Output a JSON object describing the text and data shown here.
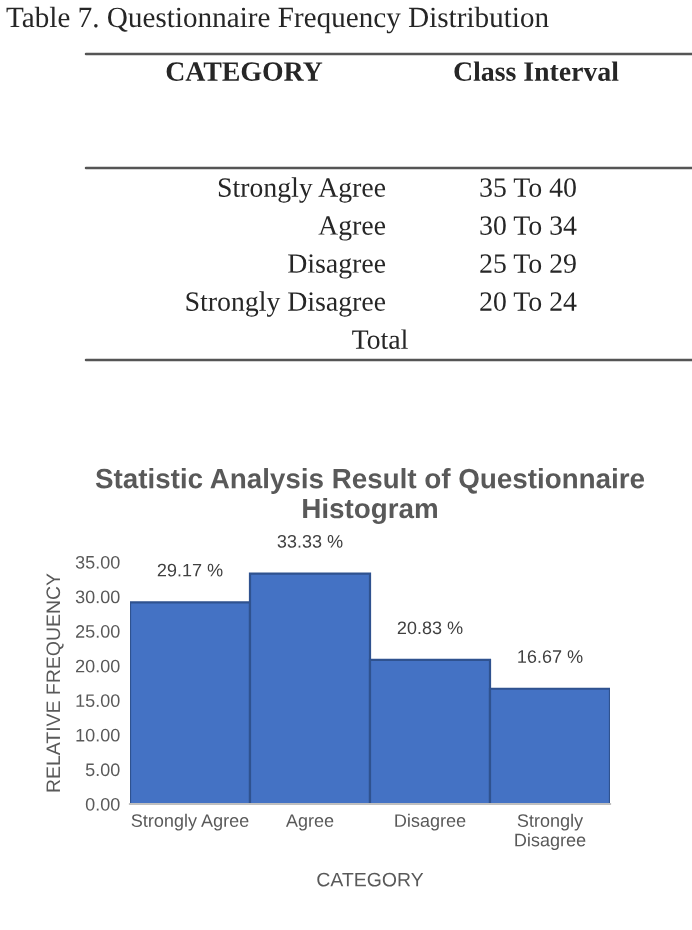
{
  "chart_data": [
    {
      "type": "other",
      "title": "Table 7. Questionnaire Frequency Distribution",
      "annotations": [
        "CATEGORY",
        "Class Interval",
        "Strongly Agree",
        "35 To 40",
        "Agree",
        "30 To 34",
        "Disagree",
        "25 To 29",
        "Strongly Disagree",
        "20 To 24",
        "Total"
      ]
    },
    {
      "type": "bar",
      "title": "Statistic Analysis Result of Questionnaire Histogram",
      "xlabel": "CATEGORY",
      "ylabel": "RELATIVE FREQUENCY",
      "categories": [
        "Strongly Agree",
        "Agree",
        "Disagree",
        "Strongly\nDisagree"
      ],
      "values": [
        29.17,
        33.33,
        20.83,
        16.67
      ],
      "value_labels": [
        "29.17 %",
        "33.33 %",
        "20.83 %",
        "16.67 %"
      ],
      "color": "#4472c4",
      "ylim": [
        0,
        35
      ],
      "yticks": [
        {
          "value": 0,
          "label": "0.00"
        },
        {
          "value": 5,
          "label": "5.00"
        },
        {
          "value": 10,
          "label": "10.00"
        },
        {
          "value": 15,
          "label": "15.00"
        },
        {
          "value": 20,
          "label": "20.00"
        },
        {
          "value": 25,
          "label": "25.00"
        },
        {
          "value": 30,
          "label": "30.00"
        },
        {
          "value": 35,
          "label": "35.00"
        }
      ],
      "grid": false
    }
  ]
}
